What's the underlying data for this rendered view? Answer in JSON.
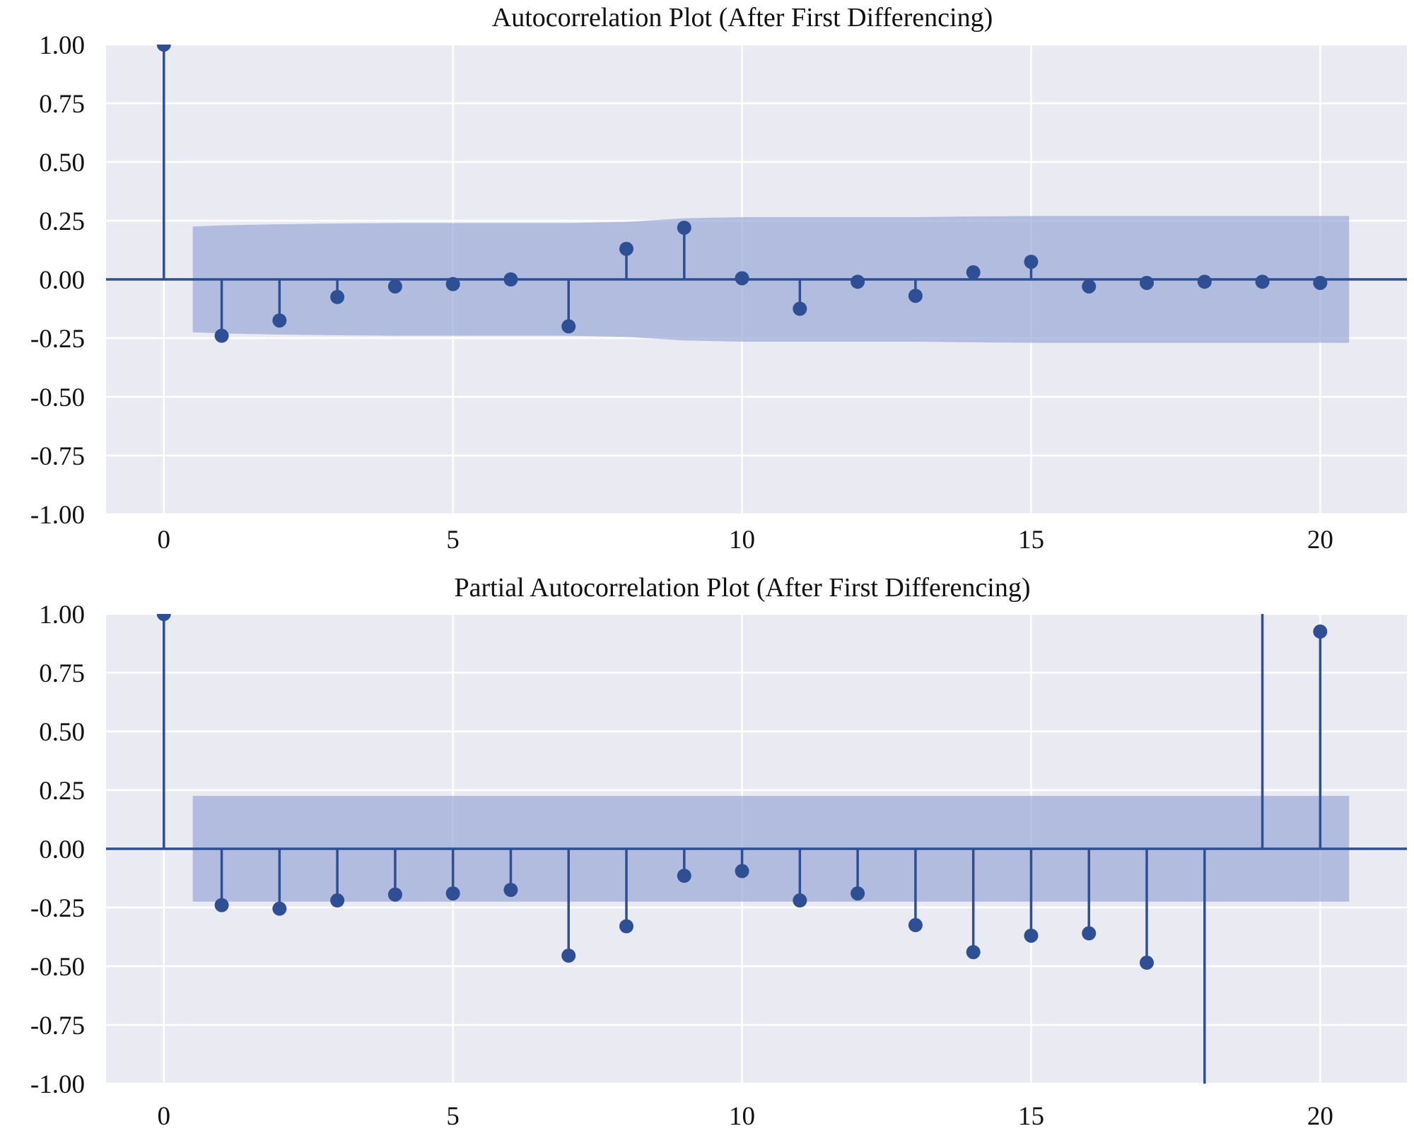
{
  "colors": {
    "plot_background": "#eaeaf2",
    "grid": "#ffffff",
    "stem": "#2f4f94",
    "marker": "#2f4f94",
    "confidence_band": "#9aa8d6",
    "zero_line": "#2f4f94"
  },
  "chart_data": [
    {
      "type": "stem",
      "title": "Autocorrelation Plot (After First Differencing)",
      "xlabel": "",
      "ylabel": "",
      "xlim": [
        -1,
        21.5
      ],
      "ylim": [
        -1.0,
        1.0
      ],
      "xticks": [
        0,
        5,
        10,
        15,
        20
      ],
      "yticks": [
        1.0,
        0.75,
        0.5,
        0.25,
        0.0,
        -0.25,
        -0.5,
        -0.75,
        -1.0
      ],
      "ytick_labels": [
        "1.00",
        "0.75",
        "0.50",
        "0.25",
        "0.00",
        "-0.25",
        "-0.50",
        "-0.75",
        "-1.00"
      ],
      "grid": true,
      "lags": [
        0,
        1,
        2,
        3,
        4,
        5,
        6,
        7,
        8,
        9,
        10,
        11,
        12,
        13,
        14,
        15,
        16,
        17,
        18,
        19,
        20
      ],
      "values": [
        1.0,
        -0.24,
        -0.175,
        -0.075,
        -0.03,
        -0.02,
        0.0,
        -0.2,
        0.13,
        0.22,
        0.005,
        -0.125,
        -0.01,
        -0.07,
        0.03,
        0.075,
        -0.03,
        -0.015,
        -0.01,
        -0.01,
        -0.015
      ],
      "confidence_band": {
        "lags": [
          0.5,
          1,
          2,
          3,
          4,
          5,
          6,
          7,
          8,
          9,
          10,
          11,
          12,
          13,
          14,
          15,
          16,
          17,
          18,
          19,
          20,
          20.5
        ],
        "upper": [
          0.225,
          0.23,
          0.235,
          0.238,
          0.24,
          0.24,
          0.24,
          0.24,
          0.245,
          0.26,
          0.265,
          0.265,
          0.265,
          0.265,
          0.268,
          0.27,
          0.27,
          0.27,
          0.27,
          0.27,
          0.27,
          0.27
        ]
      }
    },
    {
      "type": "stem",
      "title": "Partial Autocorrelation Plot (After First Differencing)",
      "xlabel": "",
      "ylabel": "",
      "xlim": [
        -1,
        21.5
      ],
      "ylim": [
        -1.0,
        1.0
      ],
      "xticks": [
        0,
        5,
        10,
        15,
        20
      ],
      "yticks": [
        1.0,
        0.75,
        0.5,
        0.25,
        0.0,
        -0.25,
        -0.5,
        -0.75,
        -1.0
      ],
      "ytick_labels": [
        "1.00",
        "0.75",
        "0.50",
        "0.25",
        "0.00",
        "-0.25",
        "-0.50",
        "-0.75",
        "-1.00"
      ],
      "grid": true,
      "lags": [
        0,
        1,
        2,
        3,
        4,
        5,
        6,
        7,
        8,
        9,
        10,
        11,
        12,
        13,
        14,
        15,
        16,
        17,
        18,
        19,
        20
      ],
      "values": [
        1.0,
        -0.24,
        -0.255,
        -0.22,
        -0.195,
        -0.19,
        -0.175,
        -0.455,
        -0.33,
        -0.115,
        -0.095,
        -0.22,
        -0.19,
        -0.325,
        -0.44,
        -0.37,
        -0.36,
        -0.485,
        -1.05,
        1.1,
        0.925
      ],
      "confidence_band": {
        "lags": [
          0.5,
          20.5
        ],
        "upper": [
          0.225,
          0.225
        ]
      }
    }
  ]
}
